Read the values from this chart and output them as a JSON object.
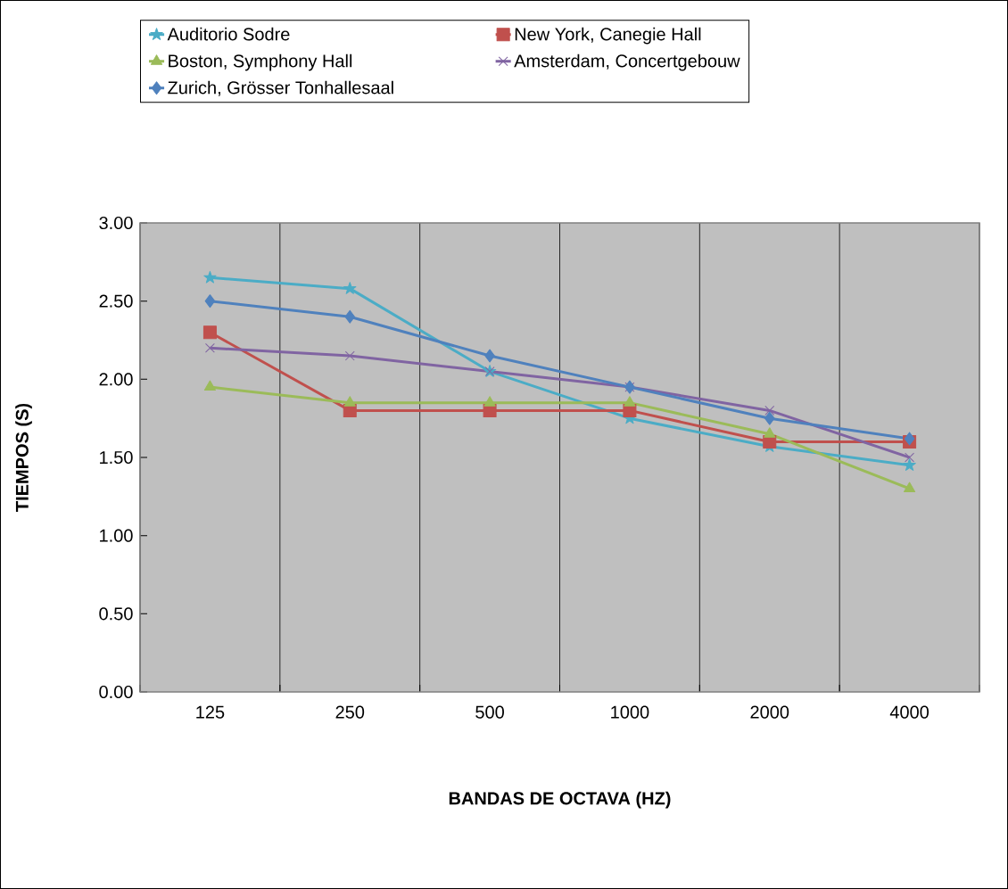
{
  "chart_data": {
    "type": "line",
    "xlabel": "BANDAS DE OCTAVA (HZ)",
    "ylabel": "TIEMPOS (S)",
    "categories": [
      "125",
      "250",
      "500",
      "1000",
      "2000",
      "4000"
    ],
    "series": [
      {
        "name": "Auditorio Sodre",
        "color": "#4bacc6",
        "marker": "star",
        "values": [
          2.65,
          2.58,
          2.05,
          1.75,
          1.57,
          1.45
        ]
      },
      {
        "name": "New York, Canegie Hall",
        "color": "#c0504d",
        "marker": "square",
        "values": [
          2.3,
          1.8,
          1.8,
          1.8,
          1.6,
          1.6
        ]
      },
      {
        "name": "Boston, Symphony Hall",
        "color": "#9bbb59",
        "marker": "triangle",
        "values": [
          1.95,
          1.85,
          1.85,
          1.85,
          1.65,
          1.3
        ]
      },
      {
        "name": "Amsterdam, Concertgebouw",
        "color": "#8064a2",
        "marker": "cross",
        "values": [
          2.2,
          2.15,
          2.05,
          1.95,
          1.8,
          1.5
        ]
      },
      {
        "name": "Zurich, Grösser Tonhallesaal",
        "color": "#4f81bd",
        "marker": "diamond",
        "values": [
          2.5,
          2.4,
          2.15,
          1.95,
          1.75,
          1.62
        ]
      }
    ],
    "ylim": [
      0,
      3
    ],
    "yticks": [
      {
        "value": 0,
        "label": "0.00"
      },
      {
        "value": 0.5,
        "label": "0.50"
      },
      {
        "value": 1,
        "label": "1.00"
      },
      {
        "value": 1.5,
        "label": "1.50"
      },
      {
        "value": 2,
        "label": "2.00"
      },
      {
        "value": 2.5,
        "label": "2.50"
      },
      {
        "value": 3,
        "label": "3.00"
      }
    ],
    "grid": "x",
    "legend": "top",
    "line_style": "solid"
  }
}
